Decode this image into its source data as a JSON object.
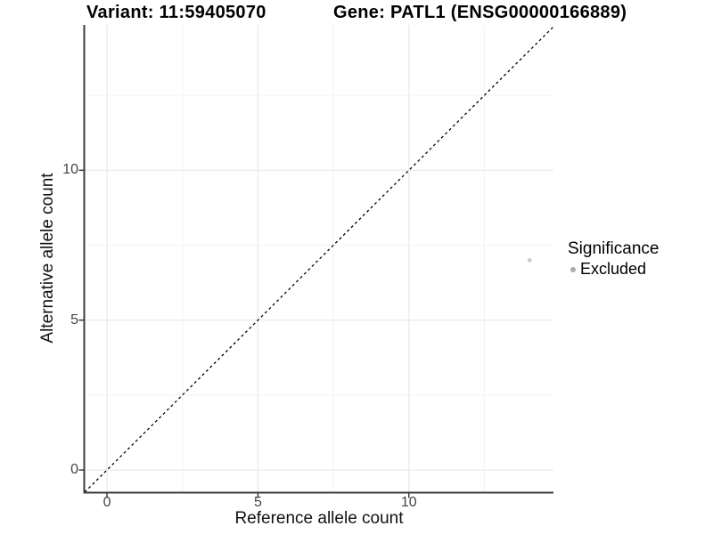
{
  "header": {
    "title_left": "Variant: 11:59405070",
    "title_right": "Gene: PATL1 (ENSG00000166889)"
  },
  "chart_data": {
    "type": "scatter",
    "title_left": "Variant: 11:59405070",
    "title_right": "Gene: PATL1 (ENSG00000166889)",
    "xlabel": "Reference allele count",
    "ylabel": "Alternative allele count",
    "xlim": [
      -0.74,
      14.79
    ],
    "ylim": [
      -0.74,
      14.85
    ],
    "xticks": [
      0,
      5,
      10
    ],
    "yticks": [
      0,
      5,
      10
    ],
    "x_minor_ticks": [
      2.5,
      7.5,
      12.5
    ],
    "y_minor_ticks": [
      2.5,
      7.5,
      12.5
    ],
    "grid": "major+minor",
    "points": [
      {
        "x": 14,
        "y": 7,
        "series": "Excluded"
      }
    ],
    "point_radius": 2.3,
    "identity_line": {
      "slope": 1,
      "intercept": 0,
      "style": "dashed"
    },
    "legend": {
      "title": "Significance",
      "position": "right",
      "items": [
        {
          "label": "Excluded",
          "color": "#ababab"
        }
      ]
    }
  },
  "colors": {
    "background": "#ffffff",
    "grid_major": "#e8e8e8",
    "grid_minor": "#f4f4f4",
    "axis": "#3c3c3c",
    "tick_text": "#434343",
    "title_text": "#000000",
    "identity_line": "#000000",
    "point": "#c8c8c8"
  }
}
